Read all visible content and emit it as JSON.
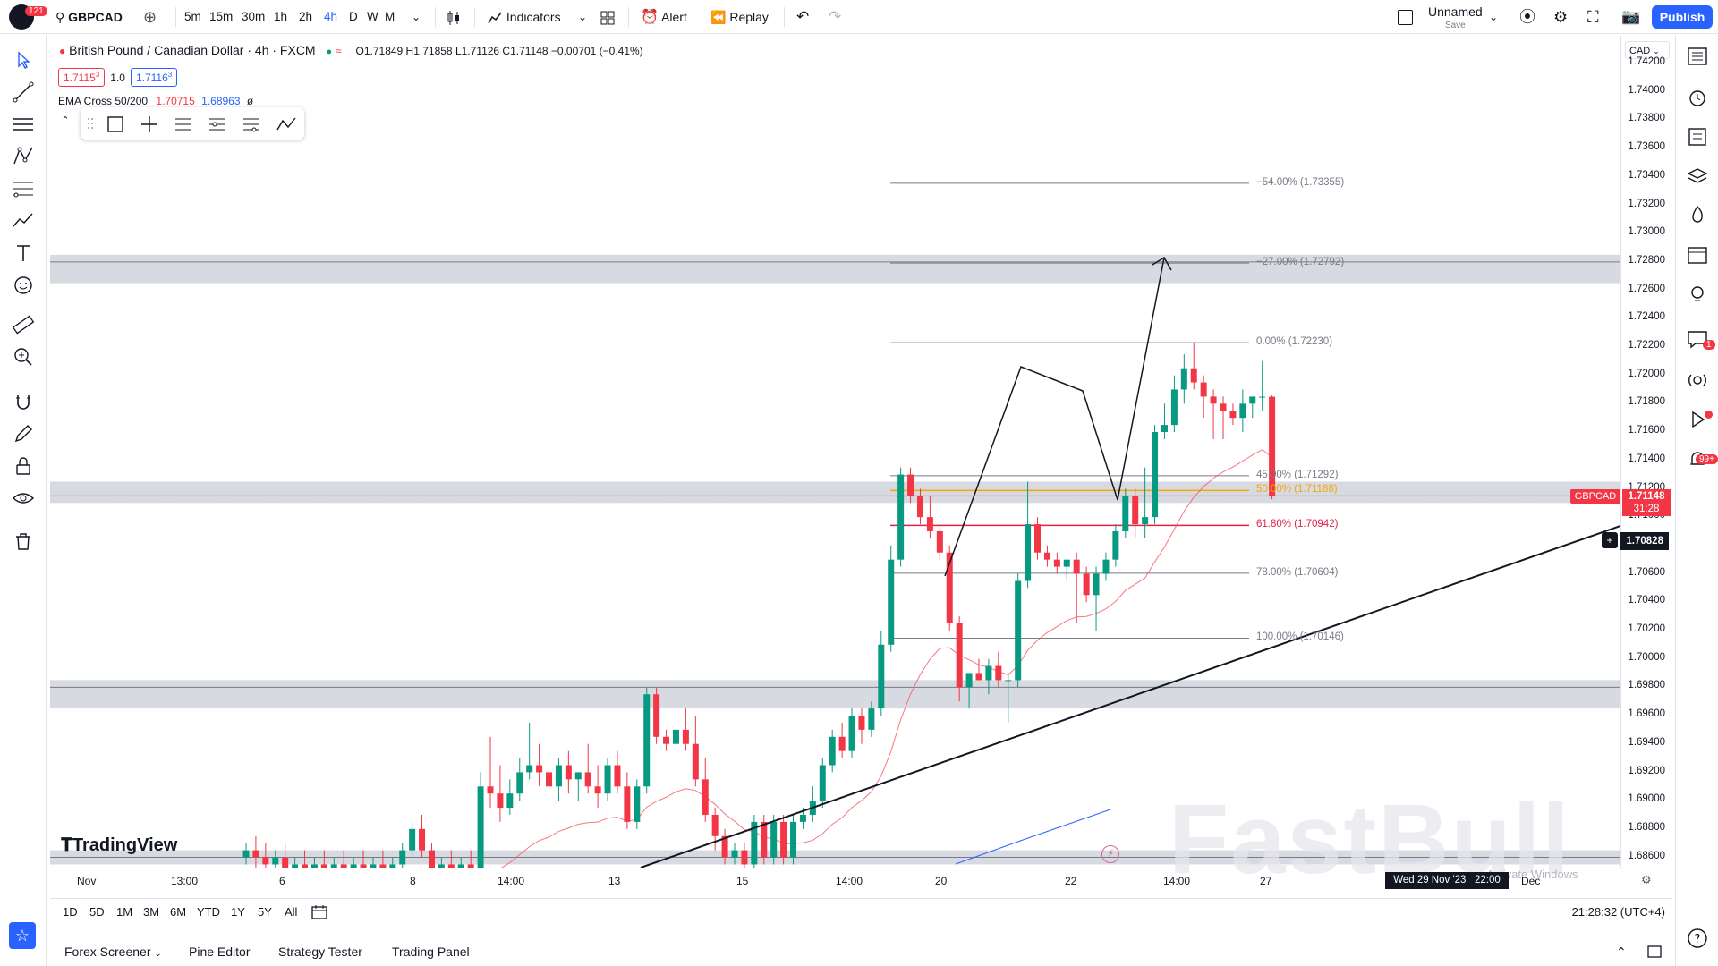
{
  "topbar": {
    "notif_count": "121",
    "symbol": "GBPCAD",
    "intervals": [
      "5m",
      "15m",
      "30m",
      "1h",
      "2h",
      "4h",
      "D",
      "W",
      "M"
    ],
    "active_interval": "4h",
    "indicators_label": "Indicators",
    "alert_label": "Alert",
    "replay_label": "Replay",
    "layout_name": "Unnamed",
    "layout_save": "Save",
    "publish_label": "Publish"
  },
  "legend": {
    "title": "British Pound / Canadian Dollar · 4h · FXCM",
    "ohlc": "O1.71849 H1.71858 L1.71126 C1.71148 −0.00701 (−0.41%)",
    "sell_price": "1.7115",
    "sell_price_sup": "3",
    "spread": "1.0",
    "buy_price": "1.7116",
    "buy_price_sup": "3",
    "ema_name": "EMA Cross 50/200",
    "ema_fast": "1.70715",
    "ema_slow": "1.68963",
    "ema_extra": "ø"
  },
  "price_scale": {
    "currency": "CAD",
    "ticks": [
      "1.74200",
      "1.74000",
      "1.73800",
      "1.73600",
      "1.73400",
      "1.73200",
      "1.73000",
      "1.72800",
      "1.72600",
      "1.72400",
      "1.72200",
      "1.72000",
      "1.71800",
      "1.71600",
      "1.71400",
      "1.71200",
      "1.71000",
      "1.70800",
      "1.70600",
      "1.70400",
      "1.70200",
      "1.70000",
      "1.69800",
      "1.69600",
      "1.69400",
      "1.69200",
      "1.69000",
      "1.68800",
      "1.68600"
    ],
    "symbol_tag": "GBPCAD",
    "last_price": "1.71148",
    "countdown": "31:28",
    "crosshair_price": "1.70828"
  },
  "fib_levels": [
    {
      "label": "−54.00% (1.73355)",
      "price": 1.73355
    },
    {
      "label": "−27.00% (1.72792)",
      "price": 1.72792
    },
    {
      "label": "0.00% (1.72230)",
      "price": 1.7223
    },
    {
      "label": "45.00% (1.71292)",
      "price": 1.71292
    },
    {
      "label": "50.00% (1.71188)",
      "price": 1.71188
    },
    {
      "label": "61.80% (1.70942)",
      "price": 1.70942
    },
    {
      "label": "78.00% (1.70604)",
      "price": 1.70604
    },
    {
      "label": "100.00% (1.70146)",
      "price": 1.70146
    }
  ],
  "time_axis": [
    "Nov",
    "13:00",
    "6",
    "8",
    "14:00",
    "13",
    "15",
    "14:00",
    "20",
    "22",
    "14:00",
    "27",
    "Dec"
  ],
  "crosshair_time": "Wed 29 Nov '23   22:00",
  "watermark": "FastBull",
  "activate_text": "Activate Windows",
  "tv_logo": "TradingView",
  "ranges": [
    "1D",
    "5D",
    "1M",
    "3M",
    "6M",
    "YTD",
    "1Y",
    "5Y",
    "All"
  ],
  "clock": "21:28:32 (UTC+4)",
  "bottom_tabs": [
    "Forex Screener",
    "Pine Editor",
    "Strategy Tester",
    "Trading Panel"
  ],
  "rightbar_badges": {
    "chat": "1",
    "ideas": "99+"
  },
  "colors": {
    "up": "#089981",
    "down": "#f23645",
    "accent": "#2962ff",
    "zone": "#d1d4dc"
  },
  "chart_data": {
    "type": "candlestick",
    "candles": [
      [
        1.686,
        1.687,
        1.6855,
        1.6865
      ],
      [
        1.6865,
        1.6875,
        1.685,
        1.686
      ],
      [
        1.686,
        1.687,
        1.6845,
        1.6855
      ],
      [
        1.6855,
        1.6865,
        1.6845,
        1.686
      ],
      [
        1.686,
        1.687,
        1.684,
        1.685
      ],
      [
        1.685,
        1.686,
        1.684,
        1.6855
      ],
      [
        1.6855,
        1.6865,
        1.6845,
        1.685
      ],
      [
        1.685,
        1.686,
        1.684,
        1.6855
      ],
      [
        1.6855,
        1.6865,
        1.6845,
        1.685
      ],
      [
        1.685,
        1.686,
        1.684,
        1.6855
      ],
      [
        1.6855,
        1.6865,
        1.6845,
        1.685
      ],
      [
        1.685,
        1.686,
        1.684,
        1.6855
      ],
      [
        1.6855,
        1.6865,
        1.6845,
        1.685
      ],
      [
        1.685,
        1.686,
        1.684,
        1.6855
      ],
      [
        1.6855,
        1.6865,
        1.6845,
        1.685
      ],
      [
        1.685,
        1.686,
        1.684,
        1.6855
      ],
      [
        1.6855,
        1.687,
        1.6845,
        1.6865
      ],
      [
        1.6865,
        1.6885,
        1.686,
        1.688
      ],
      [
        1.688,
        1.689,
        1.686,
        1.6865
      ],
      [
        1.6865,
        1.687,
        1.6845,
        1.685
      ],
      [
        1.685,
        1.686,
        1.684,
        1.6855
      ],
      [
        1.6855,
        1.6865,
        1.6845,
        1.685
      ],
      [
        1.685,
        1.686,
        1.684,
        1.6855
      ],
      [
        1.6855,
        1.6865,
        1.6845,
        1.685
      ],
      [
        1.685,
        1.692,
        1.6845,
        1.691
      ],
      [
        1.691,
        1.6945,
        1.6895,
        1.6905
      ],
      [
        1.6905,
        1.6925,
        1.6885,
        1.6895
      ],
      [
        1.6895,
        1.6915,
        1.689,
        1.6905
      ],
      [
        1.6905,
        1.693,
        1.69,
        1.692
      ],
      [
        1.692,
        1.6955,
        1.6915,
        1.6925
      ],
      [
        1.6925,
        1.694,
        1.691,
        1.692
      ],
      [
        1.692,
        1.6935,
        1.6905,
        1.691
      ],
      [
        1.691,
        1.693,
        1.69,
        1.6925
      ],
      [
        1.6925,
        1.6935,
        1.6905,
        1.6915
      ],
      [
        1.6915,
        1.692,
        1.69,
        1.692
      ],
      [
        1.692,
        1.694,
        1.6905,
        1.691
      ],
      [
        1.691,
        1.6925,
        1.6895,
        1.6905
      ],
      [
        1.6905,
        1.693,
        1.69,
        1.6925
      ],
      [
        1.6925,
        1.6935,
        1.6905,
        1.691
      ],
      [
        1.691,
        1.692,
        1.688,
        1.6885
      ],
      [
        1.6885,
        1.6915,
        1.688,
        1.691
      ],
      [
        1.691,
        1.698,
        1.6905,
        1.6975
      ],
      [
        1.6975,
        1.698,
        1.694,
        1.6945
      ],
      [
        1.6945,
        1.695,
        1.6935,
        1.694
      ],
      [
        1.694,
        1.6955,
        1.693,
        1.695
      ],
      [
        1.695,
        1.6965,
        1.6935,
        1.694
      ],
      [
        1.694,
        1.696,
        1.691,
        1.6915
      ],
      [
        1.6915,
        1.693,
        1.6885,
        1.689
      ],
      [
        1.689,
        1.6895,
        1.6865,
        1.6875
      ],
      [
        1.6875,
        1.688,
        1.6855,
        1.686
      ],
      [
        1.686,
        1.687,
        1.6855,
        1.6865
      ],
      [
        1.6865,
        1.687,
        1.685,
        1.6855
      ],
      [
        1.6855,
        1.689,
        1.685,
        1.6885
      ],
      [
        1.6885,
        1.689,
        1.6855,
        1.686
      ],
      [
        1.686,
        1.689,
        1.6855,
        1.6885
      ],
      [
        1.6885,
        1.689,
        1.6855,
        1.686
      ],
      [
        1.686,
        1.689,
        1.6855,
        1.6885
      ],
      [
        1.6885,
        1.6895,
        1.688,
        1.689
      ],
      [
        1.689,
        1.691,
        1.6885,
        1.69
      ],
      [
        1.69,
        1.693,
        1.6895,
        1.6925
      ],
      [
        1.6925,
        1.695,
        1.692,
        1.6945
      ],
      [
        1.6945,
        1.6955,
        1.693,
        1.6935
      ],
      [
        1.6935,
        1.6965,
        1.693,
        1.696
      ],
      [
        1.696,
        1.6965,
        1.694,
        1.695
      ],
      [
        1.695,
        1.697,
        1.6945,
        1.6965
      ],
      [
        1.6965,
        1.702,
        1.696,
        1.701
      ],
      [
        1.701,
        1.708,
        1.7005,
        1.707
      ],
      [
        1.707,
        1.7135,
        1.7065,
        1.713
      ],
      [
        1.713,
        1.7135,
        1.711,
        1.7115
      ],
      [
        1.7115,
        1.712,
        1.7095,
        1.71
      ],
      [
        1.71,
        1.7115,
        1.7085,
        1.709
      ],
      [
        1.709,
        1.7095,
        1.707,
        1.7075
      ],
      [
        1.7075,
        1.708,
        1.702,
        1.7025
      ],
      [
        1.7025,
        1.703,
        1.697,
        1.698
      ],
      [
        1.698,
        1.699,
        1.6965,
        1.699
      ],
      [
        1.699,
        1.7,
        1.6985,
        1.6985
      ],
      [
        1.6985,
        1.7,
        1.6975,
        1.6995
      ],
      [
        1.6995,
        1.7005,
        1.698,
        1.6985
      ],
      [
        1.6985,
        1.699,
        1.6955,
        1.6985
      ],
      [
        1.6985,
        1.706,
        1.698,
        1.7055
      ],
      [
        1.7055,
        1.7125,
        1.705,
        1.7095
      ],
      [
        1.7095,
        1.71,
        1.707,
        1.7075
      ],
      [
        1.7075,
        1.708,
        1.7065,
        1.707
      ],
      [
        1.707,
        1.7075,
        1.706,
        1.7065
      ],
      [
        1.7065,
        1.707,
        1.7055,
        1.707
      ],
      [
        1.707,
        1.7075,
        1.7025,
        1.706
      ],
      [
        1.706,
        1.7065,
        1.704,
        1.7045
      ],
      [
        1.7045,
        1.7065,
        1.702,
        1.706
      ],
      [
        1.706,
        1.7075,
        1.7055,
        1.707
      ],
      [
        1.707,
        1.7095,
        1.7065,
        1.709
      ],
      [
        1.709,
        1.712,
        1.7085,
        1.7115
      ],
      [
        1.7115,
        1.712,
        1.7085,
        1.7095
      ],
      [
        1.7095,
        1.7135,
        1.7085,
        1.71
      ],
      [
        1.71,
        1.7165,
        1.7095,
        1.716
      ],
      [
        1.716,
        1.718,
        1.7155,
        1.7165
      ],
      [
        1.7165,
        1.72,
        1.716,
        1.719
      ],
      [
        1.719,
        1.7215,
        1.718,
        1.7205
      ],
      [
        1.7205,
        1.7223,
        1.719,
        1.7195
      ],
      [
        1.7195,
        1.72,
        1.717,
        1.7185
      ],
      [
        1.7185,
        1.719,
        1.7155,
        1.718
      ],
      [
        1.718,
        1.7185,
        1.7155,
        1.7175
      ],
      [
        1.7175,
        1.718,
        1.7165,
        1.717
      ],
      [
        1.717,
        1.719,
        1.716,
        1.718
      ],
      [
        1.718,
        1.7185,
        1.717,
        1.7185
      ],
      [
        1.71849,
        1.721,
        1.7175,
        1.71849
      ],
      [
        1.71849,
        1.71858,
        1.71126,
        1.71148
      ]
    ],
    "ema_fast_end": 1.70715,
    "ema_slow_end": 1.68963,
    "zones": [
      [
        1.7265,
        1.7285
      ],
      [
        1.711,
        1.7125
      ],
      [
        1.6965,
        1.6985
      ],
      [
        1.6855,
        1.6865
      ]
    ],
    "ylim": [
      1.685,
      1.7425
    ]
  }
}
